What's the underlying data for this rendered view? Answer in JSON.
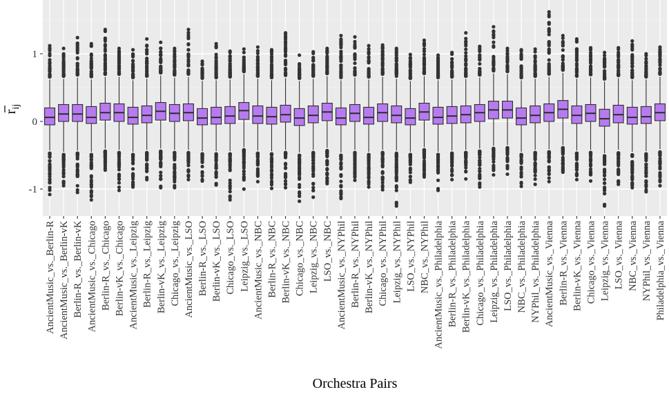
{
  "chart_data": {
    "type": "box",
    "title": "",
    "xlabel": "Orchestra Pairs",
    "ylabel": "r̄ij",
    "ylabel_main": "r",
    "ylabel_sub": "ij",
    "ylim": [
      -1.4,
      1.75
    ],
    "yticks": [
      -1,
      0,
      1
    ],
    "ytick_labels": [
      "-1",
      "0",
      "1"
    ],
    "grid": true,
    "legend": "none",
    "colors": {
      "panel_bg": "#ebebeb",
      "grid_major": "#ffffff",
      "grid_minor": "#f4f4f4",
      "box_fill": "#b77bf0",
      "box_line": "#2b2b2b",
      "outlier": "#333333"
    },
    "categories": [
      "AncientMusic_vs._Berlin-R",
      "AncientMusic_vs._Berlin-vK",
      "Berlin-R_vs._Berlin-vK",
      "AncientMusic_vs._Chicago",
      "Berlin-R_vs._Chicago",
      "Berlin-vK_vs._Chicago",
      "AncientMusic_vs._Leipzig",
      "Berlin-R_vs._Leipzig",
      "Berlin-vK_vs._Leipzig",
      "Chicago_vs._Leipzig",
      "AncientMusic_vs._LSO",
      "Berlin-R_vs._LSO",
      "Berlin-vK_vs._LSO",
      "Chicago_vs._LSO",
      "Leipzig_vs._LSO",
      "AncientMusic_vs._NBC",
      "Berlin-R_vs._NBC",
      "Berlin-vK_vs._NBC",
      "Chicago_vs._NBC",
      "Leipzig_vs._NBC",
      "LSO_vs._NBC",
      "AncientMusic_vs._NYPhil",
      "Berlin-R_vs._NYPhil",
      "Berlin-vK_vs._NYPhil",
      "Chicago_vs._NYPhil",
      "Leipzig_vs._NYPhil",
      "LSO_vs._NYPhil",
      "NBC_vs._NYPhil",
      "AncientMusic_vs._Philadelphia",
      "Berlin-R_vs._Philadelphia",
      "Berlin-vK_vs._Philadelphia",
      "Chicago_vs._Philadelphia",
      "Leipzig_vs._Philadelphia",
      "LSO_vs._Philadelphia",
      "NBC_vs._Philadelphia",
      "NYPhil_vs._Philadelphia",
      "AncientMusic_vs._Vienna",
      "Berlin-R_vs._Vienna",
      "Berlin-vK_vs._Vienna",
      "Chicago_vs._Vienna",
      "Leipzig_vs._Vienna",
      "LSO_vs._Vienna",
      "NBC_vs._Vienna",
      "NYPhil_vs._Vienna",
      "Philadelphia_vs._Vienna"
    ],
    "boxes": [
      {
        "q1": -0.05,
        "median": 0.06,
        "q3": 0.2,
        "wlo": -0.43,
        "whi": 0.62,
        "omin": -1.08,
        "omax": 1.12
      },
      {
        "q1": 0.0,
        "median": 0.11,
        "q3": 0.25,
        "wlo": -0.45,
        "whi": 0.63,
        "omin": -0.95,
        "omax": 1.08
      },
      {
        "q1": 0.0,
        "median": 0.11,
        "q3": 0.25,
        "wlo": -0.43,
        "whi": 0.65,
        "omin": -1.05,
        "omax": 1.24
      },
      {
        "q1": -0.03,
        "median": 0.06,
        "q3": 0.22,
        "wlo": -0.45,
        "whi": 0.62,
        "omin": -1.16,
        "omax": 1.15
      },
      {
        "q1": 0.02,
        "median": 0.13,
        "q3": 0.27,
        "wlo": -0.4,
        "whi": 0.66,
        "omin": -0.72,
        "omax": 1.36
      },
      {
        "q1": 0.0,
        "median": 0.13,
        "q3": 0.26,
        "wlo": -0.42,
        "whi": 0.66,
        "omin": -1.02,
        "omax": 1.08
      },
      {
        "q1": -0.04,
        "median": 0.06,
        "q3": 0.21,
        "wlo": -0.45,
        "whi": 0.61,
        "omin": -0.97,
        "omax": 1.06
      },
      {
        "q1": -0.02,
        "median": 0.09,
        "q3": 0.23,
        "wlo": -0.42,
        "whi": 0.63,
        "omin": -0.86,
        "omax": 1.22
      },
      {
        "q1": 0.02,
        "median": 0.15,
        "q3": 0.28,
        "wlo": -0.4,
        "whi": 0.68,
        "omin": -0.98,
        "omax": 1.17
      },
      {
        "q1": 0.0,
        "median": 0.12,
        "q3": 0.25,
        "wlo": -0.42,
        "whi": 0.65,
        "omin": -0.98,
        "omax": 1.08
      },
      {
        "q1": 0.01,
        "median": 0.13,
        "q3": 0.26,
        "wlo": -0.42,
        "whi": 0.66,
        "omin": -0.86,
        "omax": 1.36
      },
      {
        "q1": -0.05,
        "median": 0.05,
        "q3": 0.19,
        "wlo": -0.44,
        "whi": 0.6,
        "omin": -0.88,
        "omax": 0.89
      },
      {
        "q1": -0.04,
        "median": 0.06,
        "q3": 0.21,
        "wlo": -0.44,
        "whi": 0.61,
        "omin": -0.94,
        "omax": 1.15
      },
      {
        "q1": -0.03,
        "median": 0.08,
        "q3": 0.22,
        "wlo": -0.44,
        "whi": 0.62,
        "omin": -1.16,
        "omax": 1.04
      },
      {
        "q1": 0.03,
        "median": 0.16,
        "q3": 0.28,
        "wlo": -0.38,
        "whi": 0.7,
        "omin": -1.0,
        "omax": 1.07
      },
      {
        "q1": -0.03,
        "median": 0.08,
        "q3": 0.23,
        "wlo": -0.43,
        "whi": 0.63,
        "omin": -0.89,
        "omax": 1.1
      },
      {
        "q1": -0.04,
        "median": 0.07,
        "q3": 0.21,
        "wlo": -0.44,
        "whi": 0.61,
        "omin": -0.99,
        "omax": 1.06
      },
      {
        "q1": -0.01,
        "median": 0.1,
        "q3": 0.24,
        "wlo": -0.42,
        "whi": 0.64,
        "omin": -0.98,
        "omax": 1.31
      },
      {
        "q1": -0.06,
        "median": 0.05,
        "q3": 0.19,
        "wlo": -0.46,
        "whi": 0.6,
        "omin": -1.18,
        "omax": 0.98
      },
      {
        "q1": -0.02,
        "median": 0.09,
        "q3": 0.23,
        "wlo": -0.42,
        "whi": 0.63,
        "omin": -1.12,
        "omax": 1.03
      },
      {
        "q1": 0.01,
        "median": 0.14,
        "q3": 0.27,
        "wlo": -0.39,
        "whi": 0.67,
        "omin": -0.92,
        "omax": 1.08
      },
      {
        "q1": -0.05,
        "median": 0.05,
        "q3": 0.2,
        "wlo": -0.46,
        "whi": 0.61,
        "omin": -1.14,
        "omax": 1.27
      },
      {
        "q1": 0.0,
        "median": 0.12,
        "q3": 0.25,
        "wlo": -0.42,
        "whi": 0.65,
        "omin": -0.87,
        "omax": 1.25
      },
      {
        "q1": -0.04,
        "median": 0.06,
        "q3": 0.21,
        "wlo": -0.45,
        "whi": 0.62,
        "omin": -0.97,
        "omax": 1.12
      },
      {
        "q1": 0.0,
        "median": 0.13,
        "q3": 0.26,
        "wlo": -0.42,
        "whi": 0.66,
        "omin": -1.01,
        "omax": 1.13
      },
      {
        "q1": -0.02,
        "median": 0.09,
        "q3": 0.23,
        "wlo": -0.43,
        "whi": 0.63,
        "omin": -1.25,
        "omax": 1.08
      },
      {
        "q1": -0.05,
        "median": 0.05,
        "q3": 0.19,
        "wlo": -0.45,
        "whi": 0.6,
        "omin": -0.9,
        "omax": 0.99
      },
      {
        "q1": 0.02,
        "median": 0.14,
        "q3": 0.27,
        "wlo": -0.38,
        "whi": 0.67,
        "omin": -0.82,
        "omax": 1.2
      },
      {
        "q1": -0.04,
        "median": 0.06,
        "q3": 0.21,
        "wlo": -0.45,
        "whi": 0.61,
        "omin": -1.02,
        "omax": 0.98
      },
      {
        "q1": -0.03,
        "median": 0.08,
        "q3": 0.22,
        "wlo": -0.43,
        "whi": 0.62,
        "omin": -0.86,
        "omax": 1.02
      },
      {
        "q1": -0.02,
        "median": 0.1,
        "q3": 0.23,
        "wlo": -0.42,
        "whi": 0.63,
        "omin": -0.85,
        "omax": 1.31
      },
      {
        "q1": 0.0,
        "median": 0.13,
        "q3": 0.25,
        "wlo": -0.4,
        "whi": 0.65,
        "omin": -0.97,
        "omax": 1.11
      },
      {
        "q1": 0.04,
        "median": 0.17,
        "q3": 0.3,
        "wlo": -0.36,
        "whi": 0.71,
        "omin": -0.79,
        "omax": 1.4
      },
      {
        "q1": 0.05,
        "median": 0.17,
        "q3": 0.3,
        "wlo": -0.35,
        "whi": 0.7,
        "omin": -0.78,
        "omax": 1.08
      },
      {
        "q1": -0.05,
        "median": 0.05,
        "q3": 0.2,
        "wlo": -0.45,
        "whi": 0.61,
        "omin": -0.96,
        "omax": 1.06
      },
      {
        "q1": -0.02,
        "median": 0.09,
        "q3": 0.23,
        "wlo": -0.42,
        "whi": 0.63,
        "omin": -0.93,
        "omax": 1.07
      },
      {
        "q1": 0.0,
        "median": 0.13,
        "q3": 0.26,
        "wlo": -0.41,
        "whi": 0.66,
        "omin": -0.89,
        "omax": 1.62
      },
      {
        "q1": 0.05,
        "median": 0.18,
        "q3": 0.31,
        "wlo": -0.35,
        "whi": 0.72,
        "omin": -0.75,
        "omax": 1.27
      },
      {
        "q1": -0.03,
        "median": 0.09,
        "q3": 0.23,
        "wlo": -0.43,
        "whi": 0.63,
        "omin": -0.86,
        "omax": 1.22
      },
      {
        "q1": 0.0,
        "median": 0.12,
        "q3": 0.25,
        "wlo": -0.42,
        "whi": 0.65,
        "omin": -0.88,
        "omax": 1.09
      },
      {
        "q1": -0.07,
        "median": 0.04,
        "q3": 0.18,
        "wlo": -0.47,
        "whi": 0.59,
        "omin": -1.25,
        "omax": 1.02
      },
      {
        "q1": -0.02,
        "median": 0.1,
        "q3": 0.24,
        "wlo": -0.42,
        "whi": 0.64,
        "omin": -0.93,
        "omax": 1.09
      },
      {
        "q1": -0.04,
        "median": 0.06,
        "q3": 0.21,
        "wlo": -0.45,
        "whi": 0.61,
        "omin": -0.98,
        "omax": 1.19
      },
      {
        "q1": -0.03,
        "median": 0.07,
        "q3": 0.22,
        "wlo": -0.44,
        "whi": 0.62,
        "omin": -1.04,
        "omax": 1.0
      },
      {
        "q1": 0.01,
        "median": 0.13,
        "q3": 0.26,
        "wlo": -0.41,
        "whi": 0.66,
        "omin": -0.95,
        "omax": 1.1
      }
    ]
  }
}
